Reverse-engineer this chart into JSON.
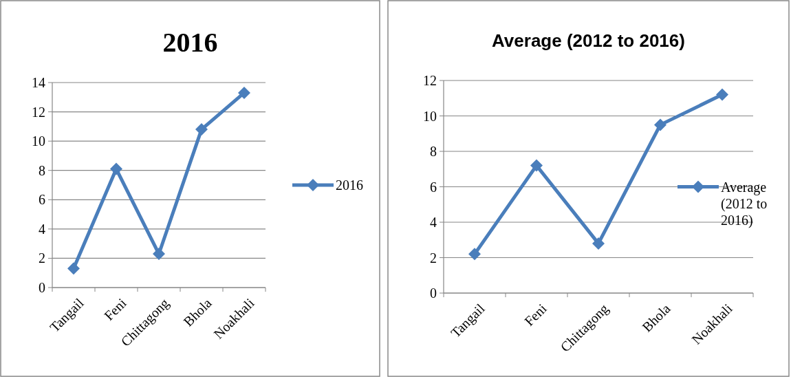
{
  "chart_data": [
    {
      "type": "line",
      "title": "2016",
      "categories": [
        "Tangail",
        "Feni",
        "Chittagong",
        "Bhola",
        "Noakhali"
      ],
      "series": [
        {
          "name": "2016",
          "color": "#4a7ebb",
          "values": [
            1.3,
            8.1,
            2.3,
            10.8,
            13.3
          ]
        }
      ],
      "ylim": [
        0,
        14
      ],
      "yticks": [
        0,
        2,
        4,
        6,
        8,
        10,
        12,
        14
      ],
      "grid": "y",
      "legend": "right",
      "marker": "diamond",
      "line_style": "solid"
    },
    {
      "type": "line",
      "title": "Average (2012 to 2016)",
      "categories": [
        "Tangail",
        "Feni",
        "Chittagong",
        "Bhola",
        "Noakhali"
      ],
      "series": [
        {
          "name": "Average (2012 to 2016)",
          "color": "#4a7ebb",
          "values": [
            2.2,
            7.2,
            2.8,
            9.5,
            11.2
          ]
        }
      ],
      "ylim": [
        0,
        12
      ],
      "yticks": [
        0,
        2,
        4,
        6,
        8,
        10,
        12
      ],
      "grid": "y",
      "legend": "right",
      "marker": "diamond",
      "line_style": "solid"
    }
  ]
}
